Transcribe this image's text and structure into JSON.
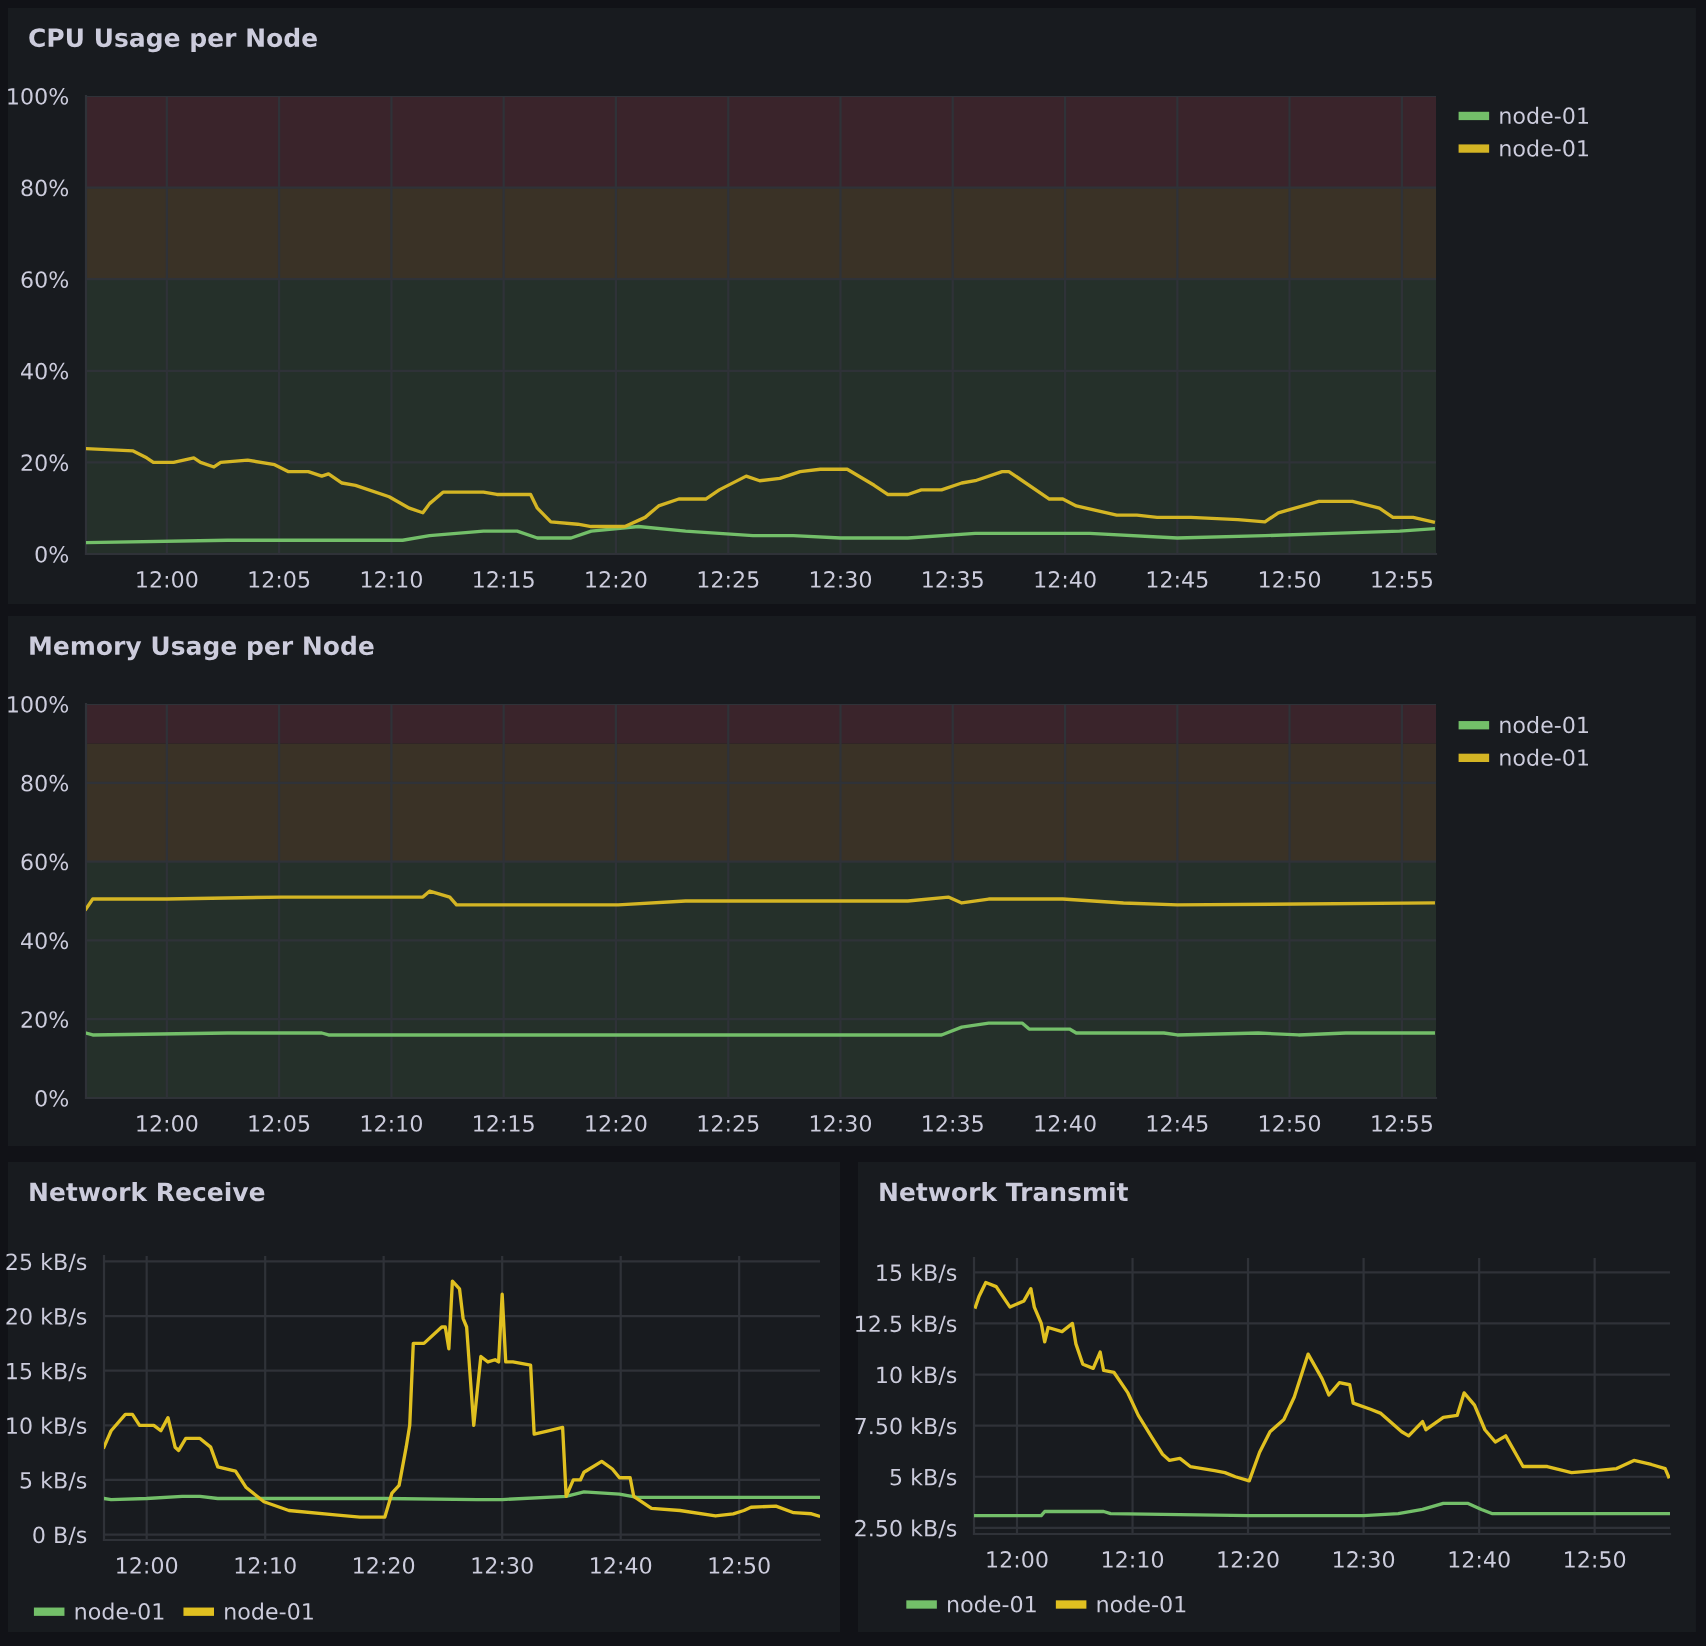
{
  "chart_data": [
    {
      "type": "line",
      "title": "CPU Usage per Node",
      "xlim": [
        11.94,
        12.942
      ],
      "xticks": [
        {
          "value": 12.0,
          "label": "12:00"
        },
        {
          "value": 12.0833,
          "label": "12:05"
        },
        {
          "value": 12.1667,
          "label": "12:10"
        },
        {
          "value": 12.25,
          "label": "12:15"
        },
        {
          "value": 12.3333,
          "label": "12:20"
        },
        {
          "value": 12.4167,
          "label": "12:25"
        },
        {
          "value": 12.5,
          "label": "12:30"
        },
        {
          "value": 12.5833,
          "label": "12:35"
        },
        {
          "value": 12.6667,
          "label": "12:40"
        },
        {
          "value": 12.75,
          "label": "12:45"
        },
        {
          "value": 12.8333,
          "label": "12:50"
        },
        {
          "value": 12.9167,
          "label": "12:55"
        }
      ],
      "ylim": [
        0,
        100
      ],
      "yticks": [
        {
          "value": 0,
          "label": "0%"
        },
        {
          "value": 20,
          "label": "20%"
        },
        {
          "value": 40,
          "label": "40%"
        },
        {
          "value": 60,
          "label": "60%"
        },
        {
          "value": 80,
          "label": "80%"
        },
        {
          "value": 100,
          "label": "100%"
        }
      ],
      "grid": true,
      "legend": "right",
      "bands": [
        {
          "axis": "y",
          "from": 0,
          "to": 60,
          "color": "#25302a"
        },
        {
          "axis": "y",
          "from": 60,
          "to": 80,
          "color": "#3a3226"
        },
        {
          "axis": "y",
          "from": 80,
          "to": 100,
          "color": "#3a242b"
        }
      ],
      "series": [
        {
          "name": "node-01",
          "color": "#73bf69",
          "x": [
            11.94,
            12.045,
            12.175,
            12.195,
            12.235,
            12.26,
            12.275,
            12.3,
            12.315,
            12.35,
            12.385,
            12.435,
            12.465,
            12.5,
            12.55,
            12.6,
            12.685,
            12.75,
            12.815,
            12.865,
            12.915,
            12.94
          ],
          "values": [
            2.5,
            3,
            3,
            4,
            5,
            5,
            3.5,
            3.5,
            5,
            6,
            5,
            4,
            4,
            3.5,
            3.5,
            4.5,
            4.5,
            3.5,
            4,
            4.5,
            5,
            5.5
          ]
        },
        {
          "name": "node-01",
          "color": "#d4b524",
          "x": [
            11.94,
            11.975,
            11.985,
            11.99,
            12.005,
            12.02,
            12.025,
            12.035,
            12.04,
            12.06,
            12.08,
            12.09,
            12.105,
            12.115,
            12.12,
            12.13,
            12.14,
            12.165,
            12.18,
            12.19,
            12.195,
            12.205,
            12.235,
            12.245,
            12.27,
            12.275,
            12.285,
            12.305,
            12.315,
            12.34,
            12.355,
            12.365,
            12.38,
            12.4,
            12.41,
            12.43,
            12.44,
            12.455,
            12.47,
            12.485,
            12.505,
            12.525,
            12.535,
            12.55,
            12.56,
            12.575,
            12.59,
            12.6,
            12.62,
            12.625,
            12.655,
            12.665,
            12.675,
            12.705,
            12.72,
            12.735,
            12.76,
            12.795,
            12.815,
            12.825,
            12.855,
            12.88,
            12.9,
            12.91,
            12.925,
            12.94
          ],
          "values": [
            23,
            22.5,
            21,
            20,
            20,
            21,
            20,
            19,
            20,
            20.5,
            19.5,
            18,
            18,
            17,
            17.5,
            15.5,
            15,
            12.5,
            10,
            9,
            11,
            13.5,
            13.5,
            13,
            13,
            10,
            7,
            6.5,
            6,
            6,
            8,
            10.5,
            12,
            12,
            14,
            17,
            16,
            16.5,
            18,
            18.5,
            18.5,
            15,
            13,
            13,
            14,
            14,
            15.5,
            16,
            18,
            18,
            12,
            12,
            10.5,
            8.5,
            8.5,
            8,
            8,
            7.5,
            7,
            9,
            11.5,
            11.5,
            10,
            8,
            8,
            7
          ]
        }
      ]
    },
    {
      "type": "line",
      "title": "Memory Usage per Node",
      "xlim": [
        11.94,
        12.942
      ],
      "xticks": [
        {
          "value": 12.0,
          "label": "12:00"
        },
        {
          "value": 12.0833,
          "label": "12:05"
        },
        {
          "value": 12.1667,
          "label": "12:10"
        },
        {
          "value": 12.25,
          "label": "12:15"
        },
        {
          "value": 12.3333,
          "label": "12:20"
        },
        {
          "value": 12.4167,
          "label": "12:25"
        },
        {
          "value": 12.5,
          "label": "12:30"
        },
        {
          "value": 12.5833,
          "label": "12:35"
        },
        {
          "value": 12.6667,
          "label": "12:40"
        },
        {
          "value": 12.75,
          "label": "12:45"
        },
        {
          "value": 12.8333,
          "label": "12:50"
        },
        {
          "value": 12.9167,
          "label": "12:55"
        }
      ],
      "ylim": [
        0,
        100
      ],
      "yticks": [
        {
          "value": 0,
          "label": "0%"
        },
        {
          "value": 20,
          "label": "20%"
        },
        {
          "value": 40,
          "label": "40%"
        },
        {
          "value": 60,
          "label": "60%"
        },
        {
          "value": 80,
          "label": "80%"
        },
        {
          "value": 100,
          "label": "100%"
        }
      ],
      "grid": true,
      "legend": "right",
      "bands": [
        {
          "axis": "y",
          "from": 0,
          "to": 60,
          "color": "#25302a"
        },
        {
          "axis": "y",
          "from": 60,
          "to": 90,
          "color": "#3a3226"
        },
        {
          "axis": "y",
          "from": 90,
          "to": 100,
          "color": "#3a242b"
        }
      ],
      "series": [
        {
          "name": "node-01",
          "color": "#73bf69",
          "x": [
            11.94,
            11.945,
            12.045,
            12.115,
            12.12,
            12.575,
            12.59,
            12.61,
            12.635,
            12.64,
            12.67,
            12.675,
            12.74,
            12.75,
            12.81,
            12.84,
            12.875,
            12.94
          ],
          "values": [
            16.5,
            16,
            16.5,
            16.5,
            16,
            16,
            18,
            19,
            19,
            17.5,
            17.5,
            16.5,
            16.5,
            16,
            16.5,
            16,
            16.5,
            16.5
          ]
        },
        {
          "name": "node-01",
          "color": "#d4b524",
          "x": [
            11.94,
            11.945,
            12.0,
            12.085,
            12.19,
            12.195,
            12.21,
            12.215,
            12.25,
            12.335,
            12.385,
            12.55,
            12.58,
            12.59,
            12.61,
            12.665,
            12.71,
            12.75,
            12.94
          ],
          "values": [
            48,
            50.5,
            50.5,
            51,
            51,
            52.5,
            51,
            49,
            49,
            49,
            50,
            50,
            51,
            49.5,
            50.5,
            50.5,
            49.5,
            49,
            49.5
          ]
        }
      ]
    },
    {
      "type": "line",
      "title": "Network Receive",
      "xlim": [
        11.94,
        12.947
      ],
      "xticks": [
        {
          "value": 12.0,
          "label": "12:00"
        },
        {
          "value": 12.1667,
          "label": "12:10"
        },
        {
          "value": 12.3333,
          "label": "12:20"
        },
        {
          "value": 12.5,
          "label": "12:30"
        },
        {
          "value": 12.6667,
          "label": "12:40"
        },
        {
          "value": 12.8333,
          "label": "12:50"
        }
      ],
      "ylim": [
        -0.5,
        25.5
      ],
      "yticks": [
        {
          "value": 0,
          "label": "0 B/s"
        },
        {
          "value": 5,
          "label": "5 kB/s"
        },
        {
          "value": 10,
          "label": "10 kB/s"
        },
        {
          "value": 15,
          "label": "15 kB/s"
        },
        {
          "value": 20,
          "label": "20 kB/s"
        },
        {
          "value": 25,
          "label": "25 kB/s"
        }
      ],
      "grid": true,
      "legend": "bottom",
      "series": [
        {
          "name": "node-01",
          "color": "#73bf69",
          "x": [
            11.94,
            11.95,
            12.0,
            12.05,
            12.075,
            12.1,
            12.335,
            12.465,
            12.5,
            12.59,
            12.615,
            12.665,
            12.69,
            12.945
          ],
          "values": [
            3.3,
            3.2,
            3.3,
            3.5,
            3.5,
            3.3,
            3.3,
            3.2,
            3.2,
            3.5,
            3.9,
            3.7,
            3.4,
            3.4
          ]
        },
        {
          "name": "node-01",
          "color": "#e0c020",
          "x": [
            11.94,
            11.95,
            11.97,
            11.98,
            11.99,
            12.01,
            12.02,
            12.03,
            12.04,
            12.045,
            12.055,
            12.075,
            12.09,
            12.1,
            12.125,
            12.14,
            12.165,
            12.2,
            12.265,
            12.3,
            12.335,
            12.345,
            12.355,
            12.365,
            12.37,
            12.375,
            12.39,
            12.415,
            12.42,
            12.425,
            12.43,
            12.44,
            12.445,
            12.45,
            12.46,
            12.47,
            12.48,
            12.49,
            12.495,
            12.5,
            12.505,
            12.515,
            12.54,
            12.545,
            12.565,
            12.585,
            12.59,
            12.6,
            12.61,
            12.615,
            12.64,
            12.655,
            12.665,
            12.68,
            12.685,
            12.71,
            12.75,
            12.8,
            12.825,
            12.84,
            12.85,
            12.885,
            12.91,
            12.935,
            12.945
          ],
          "values": [
            8,
            9.5,
            11,
            11,
            10,
            10,
            9.5,
            10.7,
            8,
            7.7,
            8.8,
            8.8,
            8,
            6.2,
            5.8,
            4.3,
            3,
            2.2,
            1.8,
            1.6,
            1.6,
            3.8,
            4.5,
            8,
            10,
            17.5,
            17.5,
            19,
            19,
            17,
            23.2,
            22.5,
            19.8,
            19,
            10,
            16.3,
            15.8,
            16,
            15.8,
            22,
            15.8,
            15.8,
            15.5,
            9.2,
            9.5,
            9.8,
            3.5,
            5,
            5,
            5.7,
            6.7,
            6,
            5.2,
            5.2,
            3.5,
            2.4,
            2.2,
            1.7,
            1.9,
            2.2,
            2.5,
            2.6,
            2,
            1.9,
            1.7
          ]
        }
      ]
    },
    {
      "type": "line",
      "title": "Network Transmit",
      "xlim": [
        11.938,
        12.942
      ],
      "xticks": [
        {
          "value": 12.0,
          "label": "12:00"
        },
        {
          "value": 12.1667,
          "label": "12:10"
        },
        {
          "value": 12.3333,
          "label": "12:20"
        },
        {
          "value": 12.5,
          "label": "12:30"
        },
        {
          "value": 12.6667,
          "label": "12:40"
        },
        {
          "value": 12.8333,
          "label": "12:50"
        }
      ],
      "ylim": [
        2.2,
        15.7
      ],
      "yticks": [
        {
          "value": 2.5,
          "label": "2.50 kB/s"
        },
        {
          "value": 5,
          "label": "5 kB/s"
        },
        {
          "value": 7.5,
          "label": "7.50 kB/s"
        },
        {
          "value": 10,
          "label": "10 kB/s"
        },
        {
          "value": 12.5,
          "label": "12.5 kB/s"
        },
        {
          "value": 15,
          "label": "15 kB/s"
        }
      ],
      "grid": true,
      "legend": "bottom",
      "series": [
        {
          "name": "node-01",
          "color": "#73bf69",
          "x": [
            11.94,
            12.035,
            12.04,
            12.125,
            12.135,
            12.335,
            12.5,
            12.55,
            12.585,
            12.615,
            12.65,
            12.67,
            12.685,
            12.94
          ],
          "values": [
            3.1,
            3.1,
            3.3,
            3.3,
            3.2,
            3.1,
            3.1,
            3.2,
            3.4,
            3.7,
            3.7,
            3.4,
            3.2,
            3.2
          ]
        },
        {
          "name": "node-01",
          "color": "#e0c020",
          "x": [
            11.94,
            11.945,
            11.955,
            11.97,
            11.99,
            12.01,
            12.02,
            12.025,
            12.035,
            12.04,
            12.045,
            12.065,
            12.08,
            12.085,
            12.095,
            12.11,
            12.12,
            12.125,
            12.14,
            12.16,
            12.175,
            12.195,
            12.21,
            12.22,
            12.235,
            12.25,
            12.285,
            12.3,
            12.315,
            12.335,
            12.35,
            12.365,
            12.385,
            12.4,
            12.42,
            12.44,
            12.45,
            12.465,
            12.48,
            12.485,
            12.51,
            12.525,
            12.555,
            12.565,
            12.585,
            12.59,
            12.615,
            12.635,
            12.645,
            12.66,
            12.675,
            12.69,
            12.705,
            12.73,
            12.765,
            12.8,
            12.835,
            12.865,
            12.89,
            12.915,
            12.935,
            12.94
          ],
          "values": [
            13.3,
            13.8,
            14.5,
            14.3,
            13.3,
            13.6,
            14.2,
            13.3,
            12.5,
            11.6,
            12.3,
            12.1,
            12.5,
            11.5,
            10.5,
            10.3,
            11.1,
            10.2,
            10.1,
            9.1,
            8,
            6.9,
            6.1,
            5.8,
            5.9,
            5.5,
            5.3,
            5.2,
            5,
            4.8,
            6.2,
            7.2,
            7.8,
            8.9,
            11,
            9.8,
            9,
            9.6,
            9.5,
            8.6,
            8.3,
            8.1,
            7.2,
            7,
            7.7,
            7.3,
            7.9,
            8,
            9.1,
            8.5,
            7.3,
            6.7,
            7,
            5.5,
            5.5,
            5.2,
            5.3,
            5.4,
            5.8,
            5.6,
            5.4,
            5
          ]
        }
      ]
    }
  ]
}
